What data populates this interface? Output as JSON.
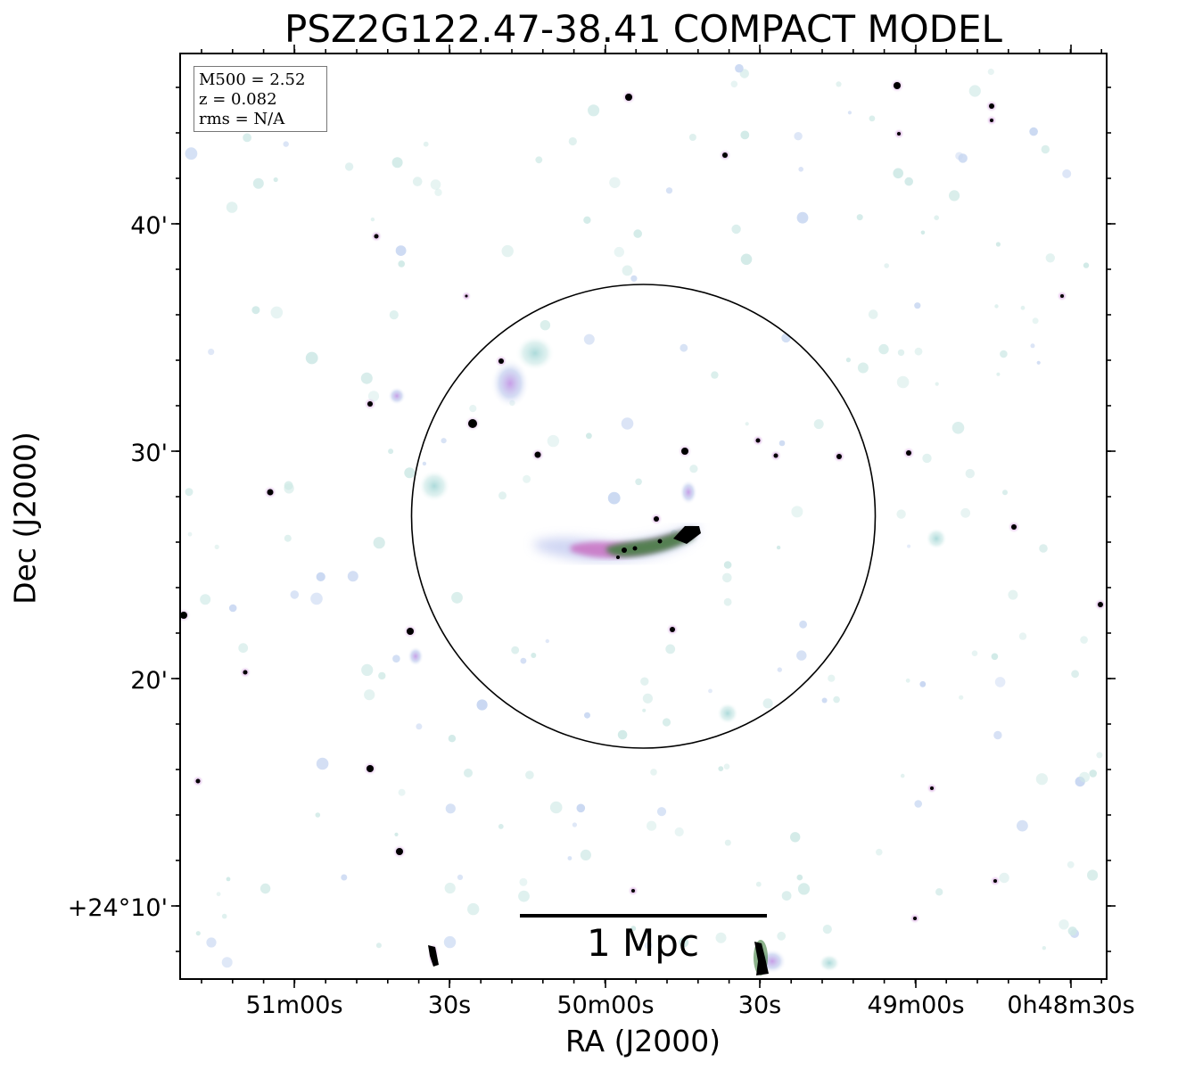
{
  "figure": {
    "title": "PSZ2G122.47-38.41 COMPACT MODEL",
    "xlabel": "RA (J2000)",
    "ylabel": "Dec (J2000)"
  },
  "legend": {
    "lines": [
      "M500 = 2.52",
      "z = 0.082",
      "rms = N/A"
    ]
  },
  "axes": {
    "x_ticks": [
      "51m00s",
      "30s",
      "50m00s",
      "30s",
      "49m00s",
      "0h48m30s"
    ],
    "y_ticks": [
      "40'",
      "30'",
      "20'",
      "+24°10'"
    ]
  },
  "scalebar": {
    "label": "1 Mpc"
  },
  "colors": {
    "frame": "#000000",
    "diffuse_cyan": "#b7e0de",
    "diffuse_violet": "#c9a6e6",
    "magenta": "#c05ab8",
    "green": "#3c7a3a",
    "point_source": "#000000"
  },
  "image": {
    "description": "radio continuum compact-source model map",
    "circle": "R500 aperture circle centred on cluster"
  }
}
